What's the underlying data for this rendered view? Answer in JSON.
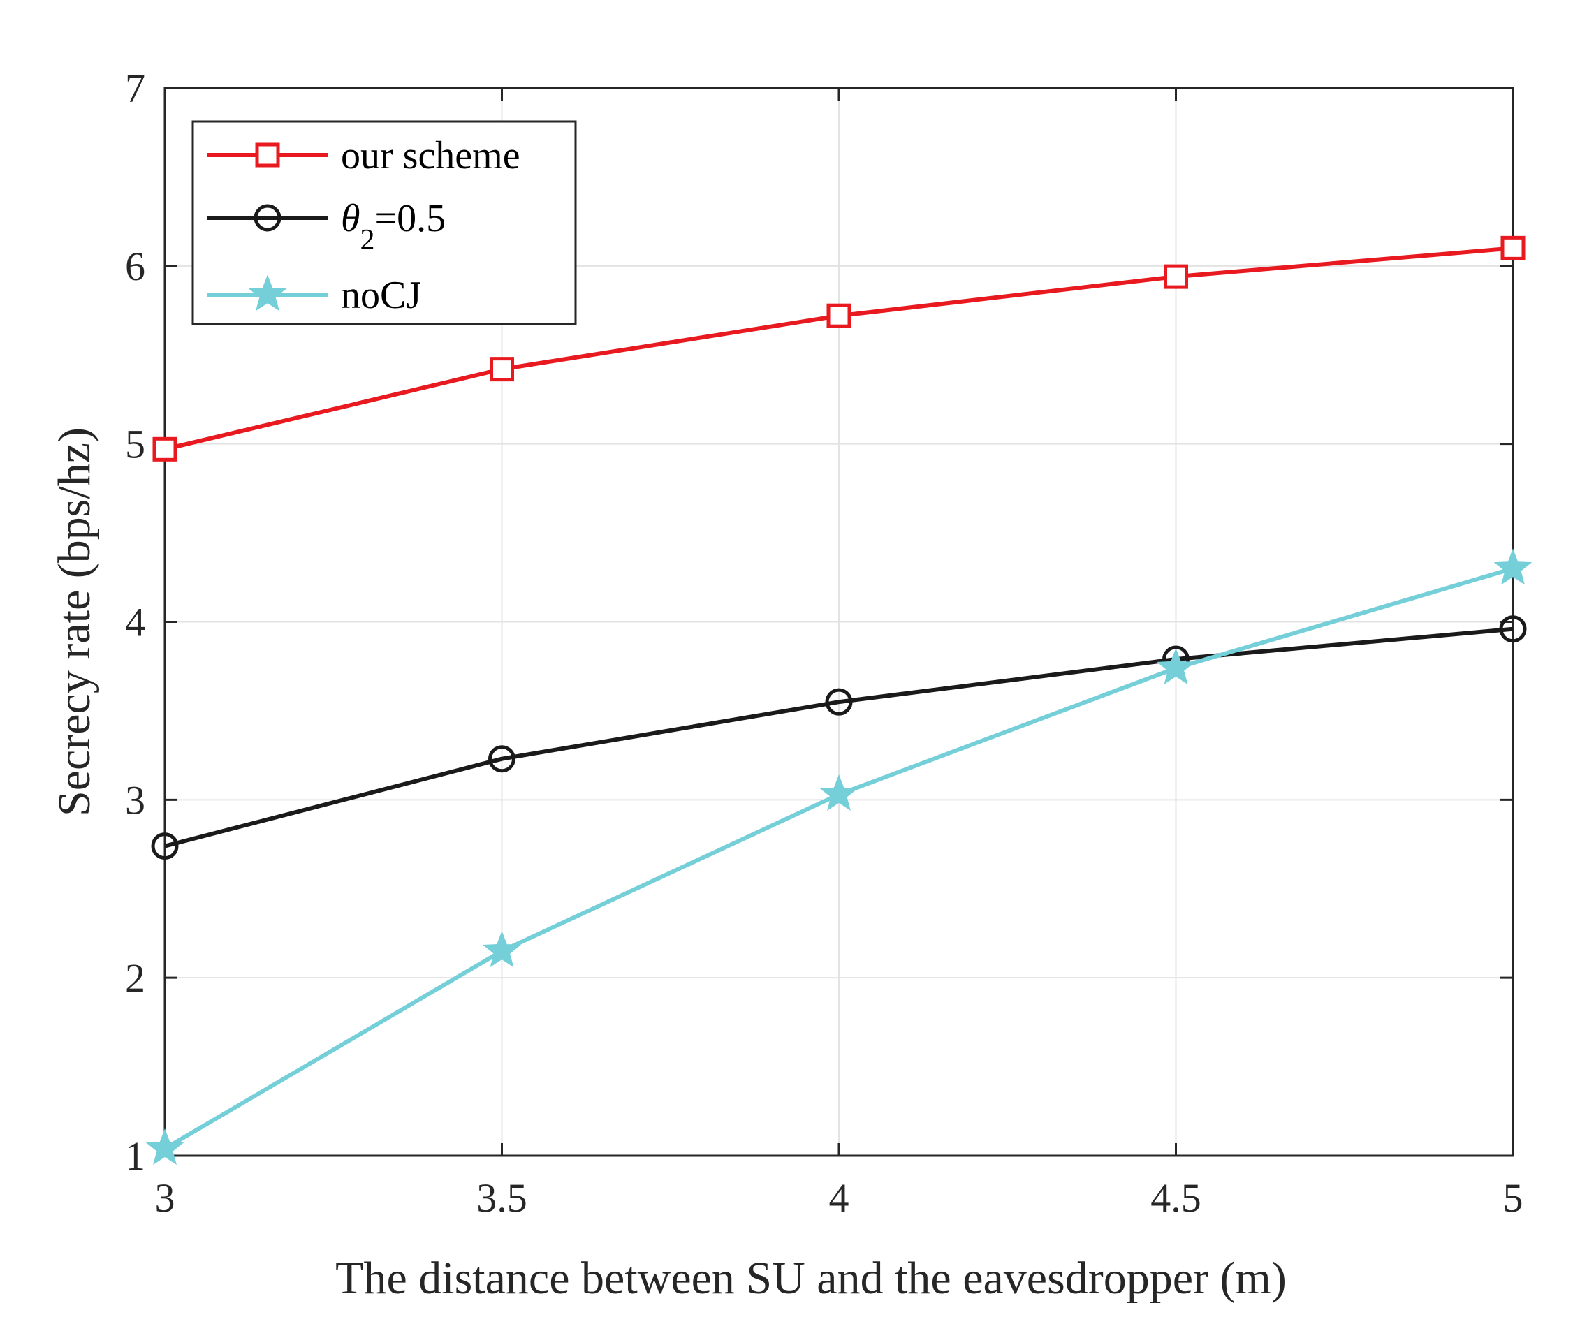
{
  "chart_data": {
    "type": "line",
    "title": "",
    "xlabel": "The distance between SU and the eavesdropper (m)",
    "ylabel": "Secrecy rate (bps/hz)",
    "xlim": [
      3,
      5
    ],
    "ylim": [
      1,
      7
    ],
    "xticks": [
      3,
      3.5,
      4,
      4.5,
      5
    ],
    "xtick_labels": [
      "3",
      "3.5",
      "4",
      "4.5",
      "5"
    ],
    "yticks": [
      1,
      2,
      3,
      4,
      5,
      6,
      7
    ],
    "ytick_labels": [
      "1",
      "2",
      "3",
      "4",
      "5",
      "6",
      "7"
    ],
    "grid": true,
    "legend_position": "top-left",
    "x": [
      3,
      3.5,
      4,
      4.5,
      5
    ],
    "series": [
      {
        "name": "our scheme",
        "name_main": "our scheme",
        "name_sub": "",
        "name_tail": "",
        "color": "#e8191f",
        "marker": "square",
        "values": [
          4.97,
          5.42,
          5.72,
          5.94,
          6.1
        ]
      },
      {
        "name": "θ2=0.5",
        "name_main": "θ",
        "name_sub": "2",
        "name_tail": "=0.5",
        "color": "#1a1a1a",
        "marker": "circle",
        "values": [
          2.74,
          3.23,
          3.55,
          3.79,
          3.96
        ]
      },
      {
        "name": "noCJ",
        "name_main": "noCJ",
        "name_sub": "",
        "name_tail": "",
        "color": "#74cfd8",
        "marker": "star",
        "values": [
          1.04,
          2.15,
          3.03,
          3.74,
          4.3
        ]
      }
    ]
  }
}
